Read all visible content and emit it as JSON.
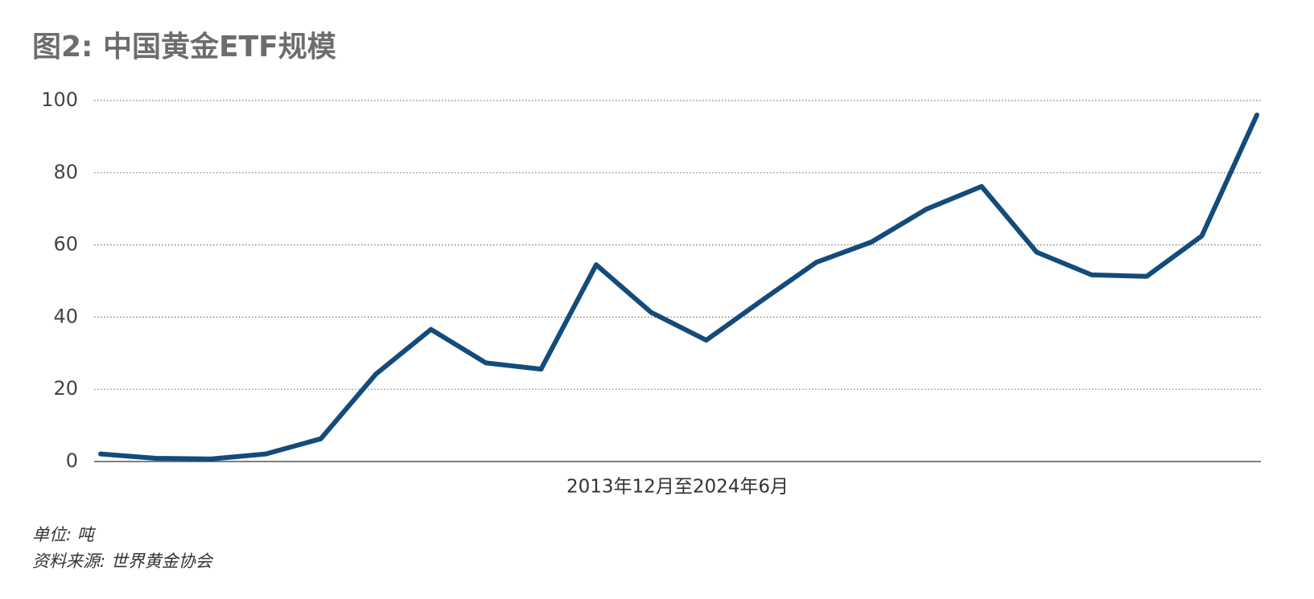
{
  "chart_data": {
    "type": "line",
    "title": "图2: 中国黄金ETF规模",
    "xlabel": "2013年12月至2024年6月",
    "notes": [
      "单位: 吨",
      "资料来源: 世界黄金协会"
    ],
    "categories": [
      null,
      null,
      null,
      null,
      null,
      null,
      null,
      null,
      null,
      null,
      null,
      null,
      null,
      null,
      null,
      null,
      null,
      null,
      null,
      null,
      null,
      null
    ],
    "series": [
      {
        "color": "#134b7b",
        "values": [
          2.1,
          0.9,
          0.7,
          2.1,
          6.3,
          24.2,
          36.6,
          27.3,
          25.6,
          54.5,
          41.3,
          33.6,
          44.5,
          55.2,
          60.8,
          69.9,
          76.2,
          58,
          51.7,
          51.3,
          62.5,
          96
        ]
      }
    ],
    "ylim": [
      0,
      100
    ],
    "yticks": [
      0,
      20,
      40,
      60,
      80,
      100
    ],
    "grid": true
  }
}
